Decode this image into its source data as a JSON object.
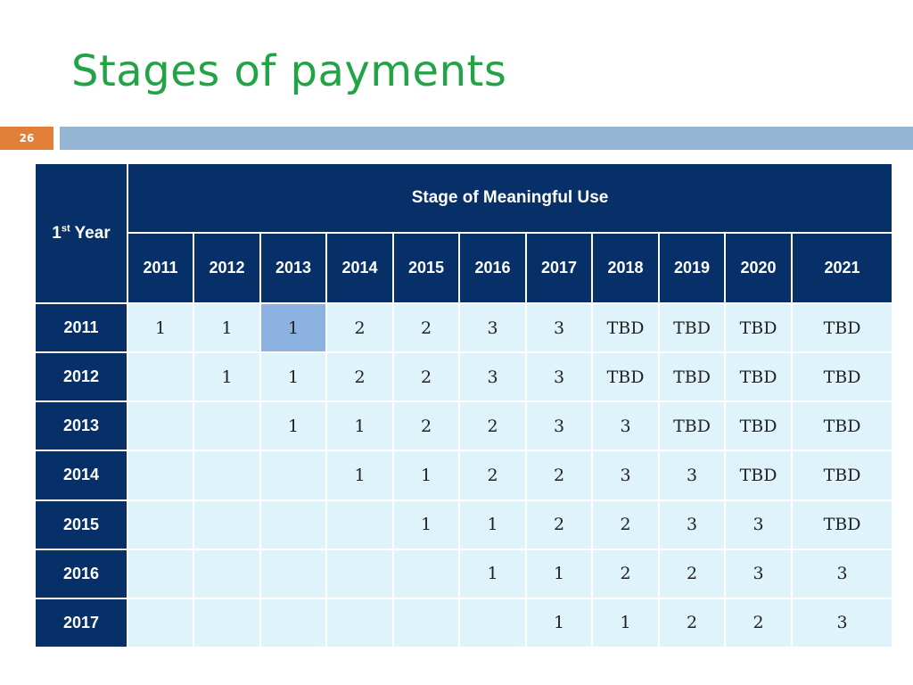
{
  "slide": {
    "title": "Stages of payments",
    "page_number": "26"
  },
  "table": {
    "corner_label_main": "1",
    "corner_label_sup": "st",
    "corner_label_rest": " Year",
    "group_header": "Stage of Meaningful Use",
    "columns": [
      "2011",
      "2012",
      "2013",
      "2014",
      "2015",
      "2016",
      "2017",
      "2018",
      "2019",
      "2020",
      "2021"
    ],
    "rows": [
      {
        "year": "2011",
        "cells": [
          "1",
          "1",
          "1",
          "2",
          "2",
          "3",
          "3",
          "TBD",
          "TBD",
          "TBD",
          "TBD"
        ]
      },
      {
        "year": "2012",
        "cells": [
          "",
          "1",
          "1",
          "2",
          "2",
          "3",
          "3",
          "TBD",
          "TBD",
          "TBD",
          "TBD"
        ]
      },
      {
        "year": "2013",
        "cells": [
          "",
          "",
          "1",
          "1",
          "2",
          "2",
          "3",
          "3",
          "TBD",
          "TBD",
          "TBD"
        ]
      },
      {
        "year": "2014",
        "cells": [
          "",
          "",
          "",
          "1",
          "1",
          "2",
          "2",
          "3",
          "3",
          "TBD",
          "TBD"
        ]
      },
      {
        "year": "2015",
        "cells": [
          "",
          "",
          "",
          "",
          "1",
          "1",
          "2",
          "2",
          "3",
          "3",
          "TBD"
        ]
      },
      {
        "year": "2016",
        "cells": [
          "",
          "",
          "",
          "",
          "",
          "1",
          "1",
          "2",
          "2",
          "3",
          "3"
        ]
      },
      {
        "year": "2017",
        "cells": [
          "",
          "",
          "",
          "",
          "",
          "",
          "1",
          "1",
          "2",
          "2",
          "3"
        ]
      }
    ],
    "highlight_color": "#8cb2e2"
  }
}
